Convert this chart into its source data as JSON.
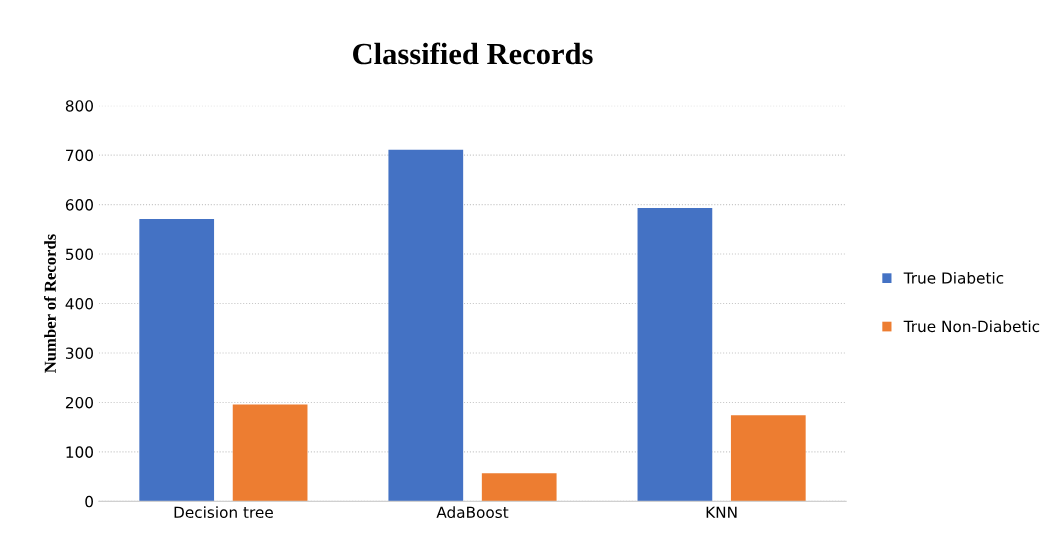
{
  "chart_data": {
    "type": "bar",
    "title": "Classified Records",
    "ylabel": "Number of Records",
    "categories": [
      "Decision tree",
      "AdaBoost",
      "KNN"
    ],
    "series": [
      {
        "name": "True Diabetic",
        "color": "#4472c4",
        "values": [
          571,
          711,
          593
        ]
      },
      {
        "name": "True Non-Diabetic",
        "color": "#ed7d31",
        "values": [
          196,
          57,
          174
        ]
      }
    ],
    "ylim": [
      0,
      800
    ],
    "yticks": [
      0,
      100,
      200,
      300,
      400,
      500,
      600,
      700,
      800
    ],
    "grid": "y",
    "legend": "right"
  }
}
